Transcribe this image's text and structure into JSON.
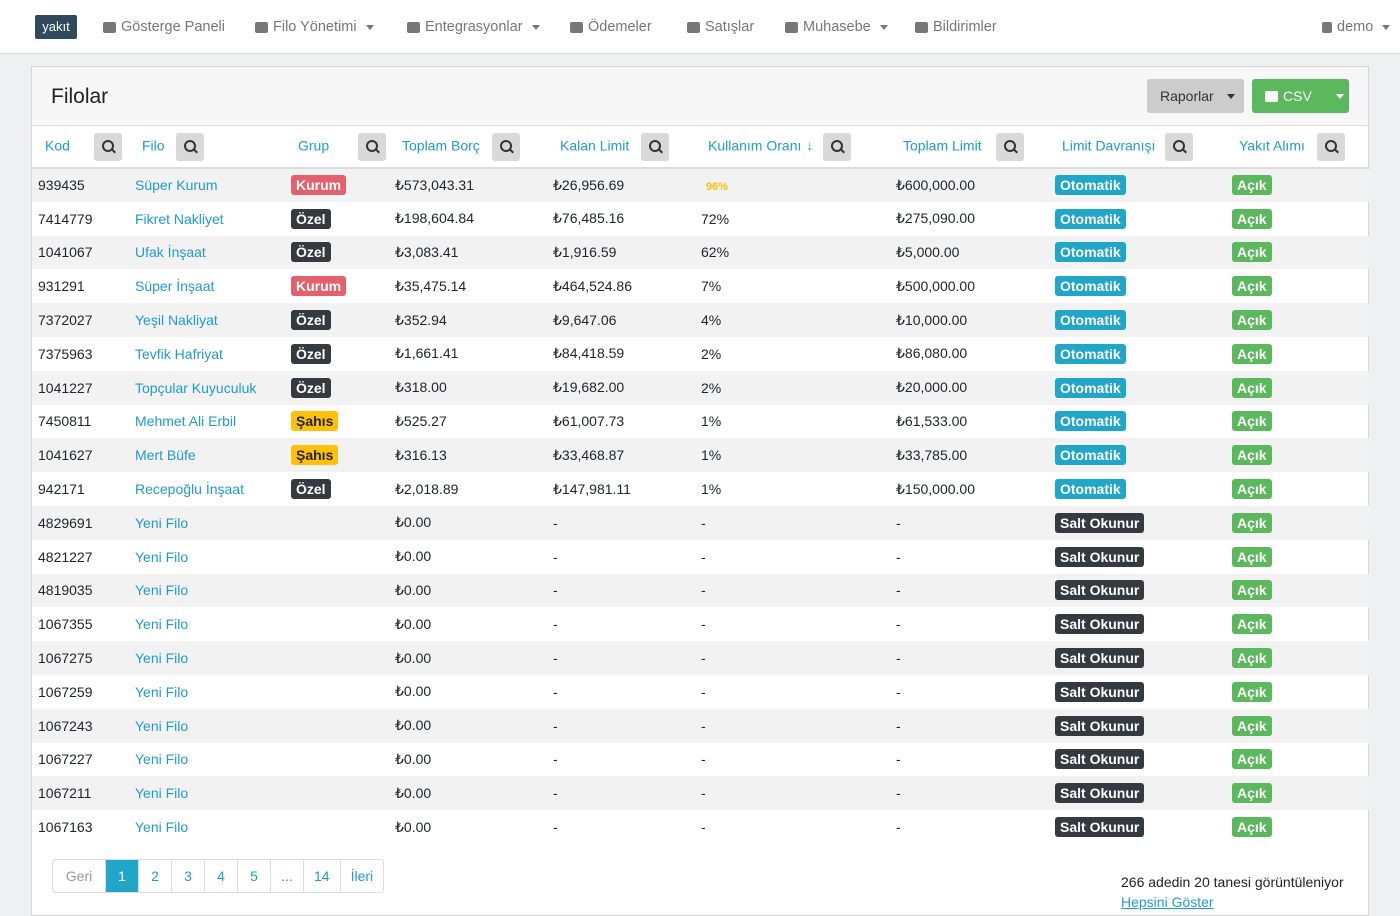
{
  "navbar": {
    "logo": "yakıt",
    "items": [
      {
        "label": "Gösterge Paneli"
      },
      {
        "label": "Filo Yönetimi",
        "dropdown": true
      },
      {
        "label": "Entegrasyonlar",
        "dropdown": true
      },
      {
        "label": "Ödemeler"
      },
      {
        "label": "Satışlar"
      },
      {
        "label": "Muhasebe",
        "dropdown": true
      },
      {
        "label": "Bildirimler"
      }
    ],
    "user": "demo"
  },
  "card": {
    "title": "Filolar",
    "buttons": {
      "reports": "Raporlar",
      "csv": "CSV"
    }
  },
  "table": {
    "columns": [
      {
        "label": "Kod"
      },
      {
        "label": "Filo"
      },
      {
        "label": "Grup"
      },
      {
        "label": "Toplam Borç"
      },
      {
        "label": "Kalan Limit"
      },
      {
        "label": "Kullanım Oranı",
        "sorted": true
      },
      {
        "label": "Toplam Limit"
      },
      {
        "label": "Limit Davranışı"
      },
      {
        "label": "Yakıt Alımı"
      }
    ],
    "yakit_color": "#5cb85c",
    "rows": [
      {
        "kod": "939435",
        "filo": "Süper Kurum",
        "grup": "Kurum",
        "grup_bg": "#e4606d",
        "grup_fg": "#ffffff",
        "borc": "₺573,043.31",
        "kalan": "₺26,956.69",
        "oran": "96%",
        "oran_color": "#ffc107",
        "limit": "₺600,000.00",
        "davranis": "Otomatik",
        "davranis_bg": "#1fa6c9",
        "yakit": "Açık"
      },
      {
        "kod": "7414779",
        "filo": "Fikret Nakliyet",
        "grup": "Özel",
        "grup_bg": "#343a40",
        "grup_fg": "#ffffff",
        "borc": "₺198,604.84",
        "kalan": "₺76,485.16",
        "oran": "72%",
        "limit": "₺275,090.00",
        "davranis": "Otomatik",
        "davranis_bg": "#1fa6c9",
        "yakit": "Açık"
      },
      {
        "kod": "1041067",
        "filo": "Ufak İnşaat",
        "grup": "Özel",
        "grup_bg": "#343a40",
        "grup_fg": "#ffffff",
        "borc": "₺3,083.41",
        "kalan": "₺1,916.59",
        "oran": "62%",
        "limit": "₺5,000.00",
        "davranis": "Otomatik",
        "davranis_bg": "#1fa6c9",
        "yakit": "Açık"
      },
      {
        "kod": "931291",
        "filo": "Süper İnşaat",
        "grup": "Kurum",
        "grup_bg": "#e4606d",
        "grup_fg": "#ffffff",
        "borc": "₺35,475.14",
        "kalan": "₺464,524.86",
        "oran": "7%",
        "limit": "₺500,000.00",
        "davranis": "Otomatik",
        "davranis_bg": "#1fa6c9",
        "yakit": "Açık"
      },
      {
        "kod": "7372027",
        "filo": "Yeşil Nakliyat",
        "grup": "Özel",
        "grup_bg": "#343a40",
        "grup_fg": "#ffffff",
        "borc": "₺352.94",
        "kalan": "₺9,647.06",
        "oran": "4%",
        "limit": "₺10,000.00",
        "davranis": "Otomatik",
        "davranis_bg": "#1fa6c9",
        "yakit": "Açık"
      },
      {
        "kod": "7375963",
        "filo": "Tevfik Hafriyat",
        "grup": "Özel",
        "grup_bg": "#343a40",
        "grup_fg": "#ffffff",
        "borc": "₺1,661.41",
        "kalan": "₺84,418.59",
        "oran": "2%",
        "limit": "₺86,080.00",
        "davranis": "Otomatik",
        "davranis_bg": "#1fa6c9",
        "yakit": "Açık"
      },
      {
        "kod": "1041227",
        "filo": "Topçular Kuyuculuk",
        "grup": "Özel",
        "grup_bg": "#343a40",
        "grup_fg": "#ffffff",
        "borc": "₺318.00",
        "kalan": "₺19,682.00",
        "oran": "2%",
        "limit": "₺20,000.00",
        "davranis": "Otomatik",
        "davranis_bg": "#1fa6c9",
        "yakit": "Açık"
      },
      {
        "kod": "7450811",
        "filo": "Mehmet Ali Erbil",
        "grup": "Şahıs",
        "grup_bg": "#ffc107",
        "grup_fg": "#212529",
        "borc": "₺525.27",
        "kalan": "₺61,007.73",
        "oran": "1%",
        "limit": "₺61,533.00",
        "davranis": "Otomatik",
        "davranis_bg": "#1fa6c9",
        "yakit": "Açık"
      },
      {
        "kod": "1041627",
        "filo": "Mert Büfe",
        "grup": "Şahıs",
        "grup_bg": "#ffc107",
        "grup_fg": "#212529",
        "borc": "₺316.13",
        "kalan": "₺33,468.87",
        "oran": "1%",
        "limit": "₺33,785.00",
        "davranis": "Otomatik",
        "davranis_bg": "#1fa6c9",
        "yakit": "Açık"
      },
      {
        "kod": "942171",
        "filo": "Recepoğlu İnşaat",
        "grup": "Özel",
        "grup_bg": "#343a40",
        "grup_fg": "#ffffff",
        "borc": "₺2,018.89",
        "kalan": "₺147,981.11",
        "oran": "1%",
        "limit": "₺150,000.00",
        "davranis": "Otomatik",
        "davranis_bg": "#1fa6c9",
        "yakit": "Açık"
      },
      {
        "kod": "4829691",
        "filo": "Yeni Filo",
        "borc": "₺0.00",
        "kalan": "-",
        "oran": "-",
        "limit": "-",
        "davranis": "Salt Okunur",
        "davranis_bg": "#343a40",
        "yakit": "Açık"
      },
      {
        "kod": "4821227",
        "filo": "Yeni Filo",
        "borc": "₺0.00",
        "kalan": "-",
        "oran": "-",
        "limit": "-",
        "davranis": "Salt Okunur",
        "davranis_bg": "#343a40",
        "yakit": "Açık"
      },
      {
        "kod": "4819035",
        "filo": "Yeni Filo",
        "borc": "₺0.00",
        "kalan": "-",
        "oran": "-",
        "limit": "-",
        "davranis": "Salt Okunur",
        "davranis_bg": "#343a40",
        "yakit": "Açık"
      },
      {
        "kod": "1067355",
        "filo": "Yeni Filo",
        "borc": "₺0.00",
        "kalan": "-",
        "oran": "-",
        "limit": "-",
        "davranis": "Salt Okunur",
        "davranis_bg": "#343a40",
        "yakit": "Açık"
      },
      {
        "kod": "1067275",
        "filo": "Yeni Filo",
        "borc": "₺0.00",
        "kalan": "-",
        "oran": "-",
        "limit": "-",
        "davranis": "Salt Okunur",
        "davranis_bg": "#343a40",
        "yakit": "Açık"
      },
      {
        "kod": "1067259",
        "filo": "Yeni Filo",
        "borc": "₺0.00",
        "kalan": "-",
        "oran": "-",
        "limit": "-",
        "davranis": "Salt Okunur",
        "davranis_bg": "#343a40",
        "yakit": "Açık"
      },
      {
        "kod": "1067243",
        "filo": "Yeni Filo",
        "borc": "₺0.00",
        "kalan": "-",
        "oran": "-",
        "limit": "-",
        "davranis": "Salt Okunur",
        "davranis_bg": "#343a40",
        "yakit": "Açık"
      },
      {
        "kod": "1067227",
        "filo": "Yeni Filo",
        "borc": "₺0.00",
        "kalan": "-",
        "oran": "-",
        "limit": "-",
        "davranis": "Salt Okunur",
        "davranis_bg": "#343a40",
        "yakit": "Açık"
      },
      {
        "kod": "1067211",
        "filo": "Yeni Filo",
        "borc": "₺0.00",
        "kalan": "-",
        "oran": "-",
        "limit": "-",
        "davranis": "Salt Okunur",
        "davranis_bg": "#343a40",
        "yakit": "Açık"
      },
      {
        "kod": "1067163",
        "filo": "Yeni Filo",
        "borc": "₺0.00",
        "kalan": "-",
        "oran": "-",
        "limit": "-",
        "davranis": "Salt Okunur",
        "davranis_bg": "#343a40",
        "yakit": "Açık"
      }
    ]
  },
  "pagination": {
    "prev": "Geri",
    "pages": [
      "1",
      "2",
      "3",
      "4",
      "5",
      "...",
      "14"
    ],
    "active": 0,
    "next": "İleri"
  },
  "footer": {
    "summary": "266 adedin 20 tanesi görüntüleniyor",
    "show_all": "Hepsini Göster"
  }
}
